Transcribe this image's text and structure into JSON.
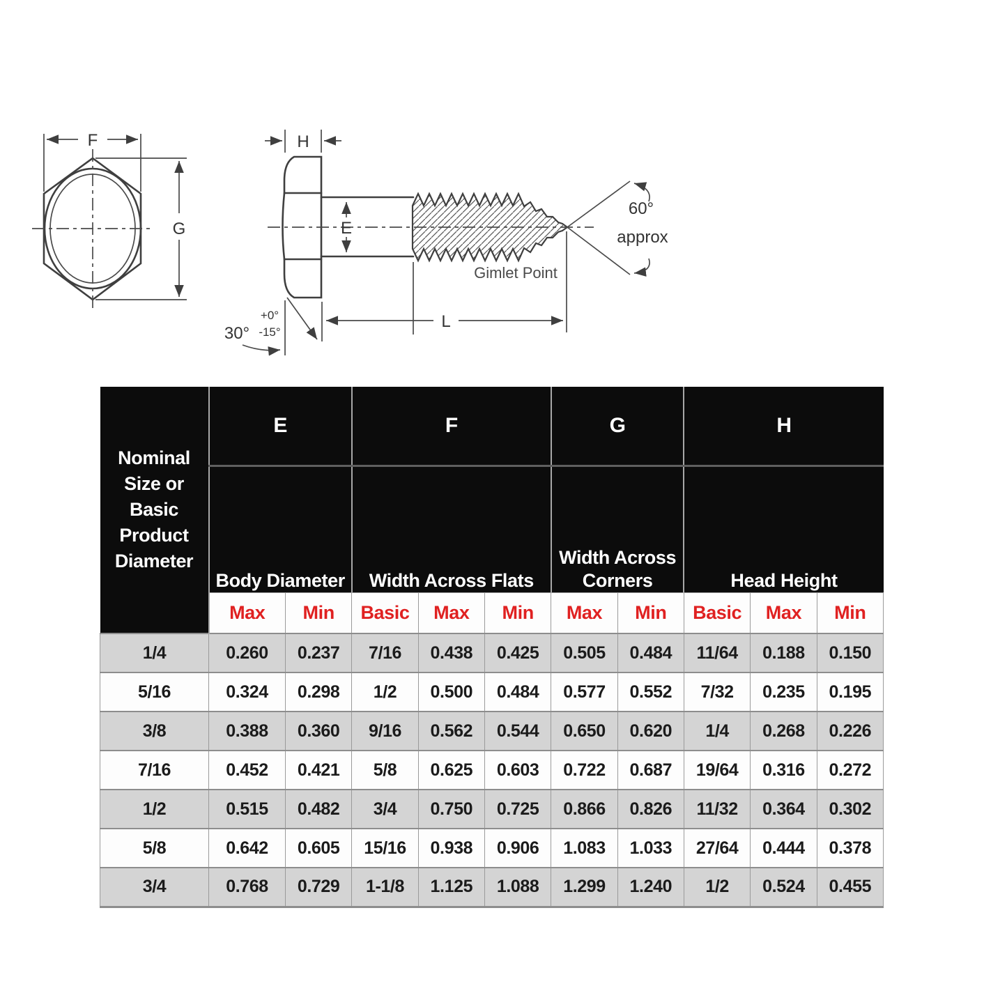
{
  "diagram": {
    "labels": {
      "f": "F",
      "g": "G",
      "h": "H",
      "e": "E",
      "l": "L",
      "angle_head_bearing": "30°",
      "tolerance_plus": "+0°",
      "tolerance_minus": "-15°",
      "angle_point": "60°",
      "angle_point_approx": "approx",
      "gimlet_point": "Gimlet Point"
    }
  },
  "table": {
    "row_header": {
      "lines": [
        "Nominal",
        "Size or",
        "Basic",
        "Product",
        "Diameter"
      ]
    },
    "groups": [
      {
        "letter": "E",
        "desc": "Body Diameter"
      },
      {
        "letter": "F",
        "desc": "Width Across Flats"
      },
      {
        "letter": "G",
        "desc": "Width Across Corners"
      },
      {
        "letter": "H",
        "desc": "Head Height"
      }
    ],
    "subcols": [
      "Max",
      "Min",
      "Basic",
      "Max",
      "Min",
      "Max",
      "Min",
      "Basic",
      "Max",
      "Min"
    ],
    "rows": [
      [
        "1/4",
        "0.260",
        "0.237",
        "7/16",
        "0.438",
        "0.425",
        "0.505",
        "0.484",
        "11/64",
        "0.188",
        "0.150"
      ],
      [
        "5/16",
        "0.324",
        "0.298",
        "1/2",
        "0.500",
        "0.484",
        "0.577",
        "0.552",
        "7/32",
        "0.235",
        "0.195"
      ],
      [
        "3/8",
        "0.388",
        "0.360",
        "9/16",
        "0.562",
        "0.544",
        "0.650",
        "0.620",
        "1/4",
        "0.268",
        "0.226"
      ],
      [
        "7/16",
        "0.452",
        "0.421",
        "5/8",
        "0.625",
        "0.603",
        "0.722",
        "0.687",
        "19/64",
        "0.316",
        "0.272"
      ],
      [
        "1/2",
        "0.515",
        "0.482",
        "3/4",
        "0.750",
        "0.725",
        "0.866",
        "0.826",
        "11/32",
        "0.364",
        "0.302"
      ],
      [
        "5/8",
        "0.642",
        "0.605",
        "15/16",
        "0.938",
        "0.906",
        "1.083",
        "1.033",
        "27/64",
        "0.444",
        "0.378"
      ],
      [
        "3/4",
        "0.768",
        "0.729",
        "1-1/8",
        "1.125",
        "1.088",
        "1.299",
        "1.240",
        "1/2",
        "0.524",
        "0.455"
      ]
    ]
  },
  "colors": {
    "header_bg": "#0c0c0c",
    "header_text": "#ffffff",
    "subheader_text": "#e02121",
    "row_shaded": "#d4d4d4",
    "row_plain": "#fdfdfd",
    "grid_line": "#9a9a9a",
    "drawing_line": "#3f3f3f"
  }
}
